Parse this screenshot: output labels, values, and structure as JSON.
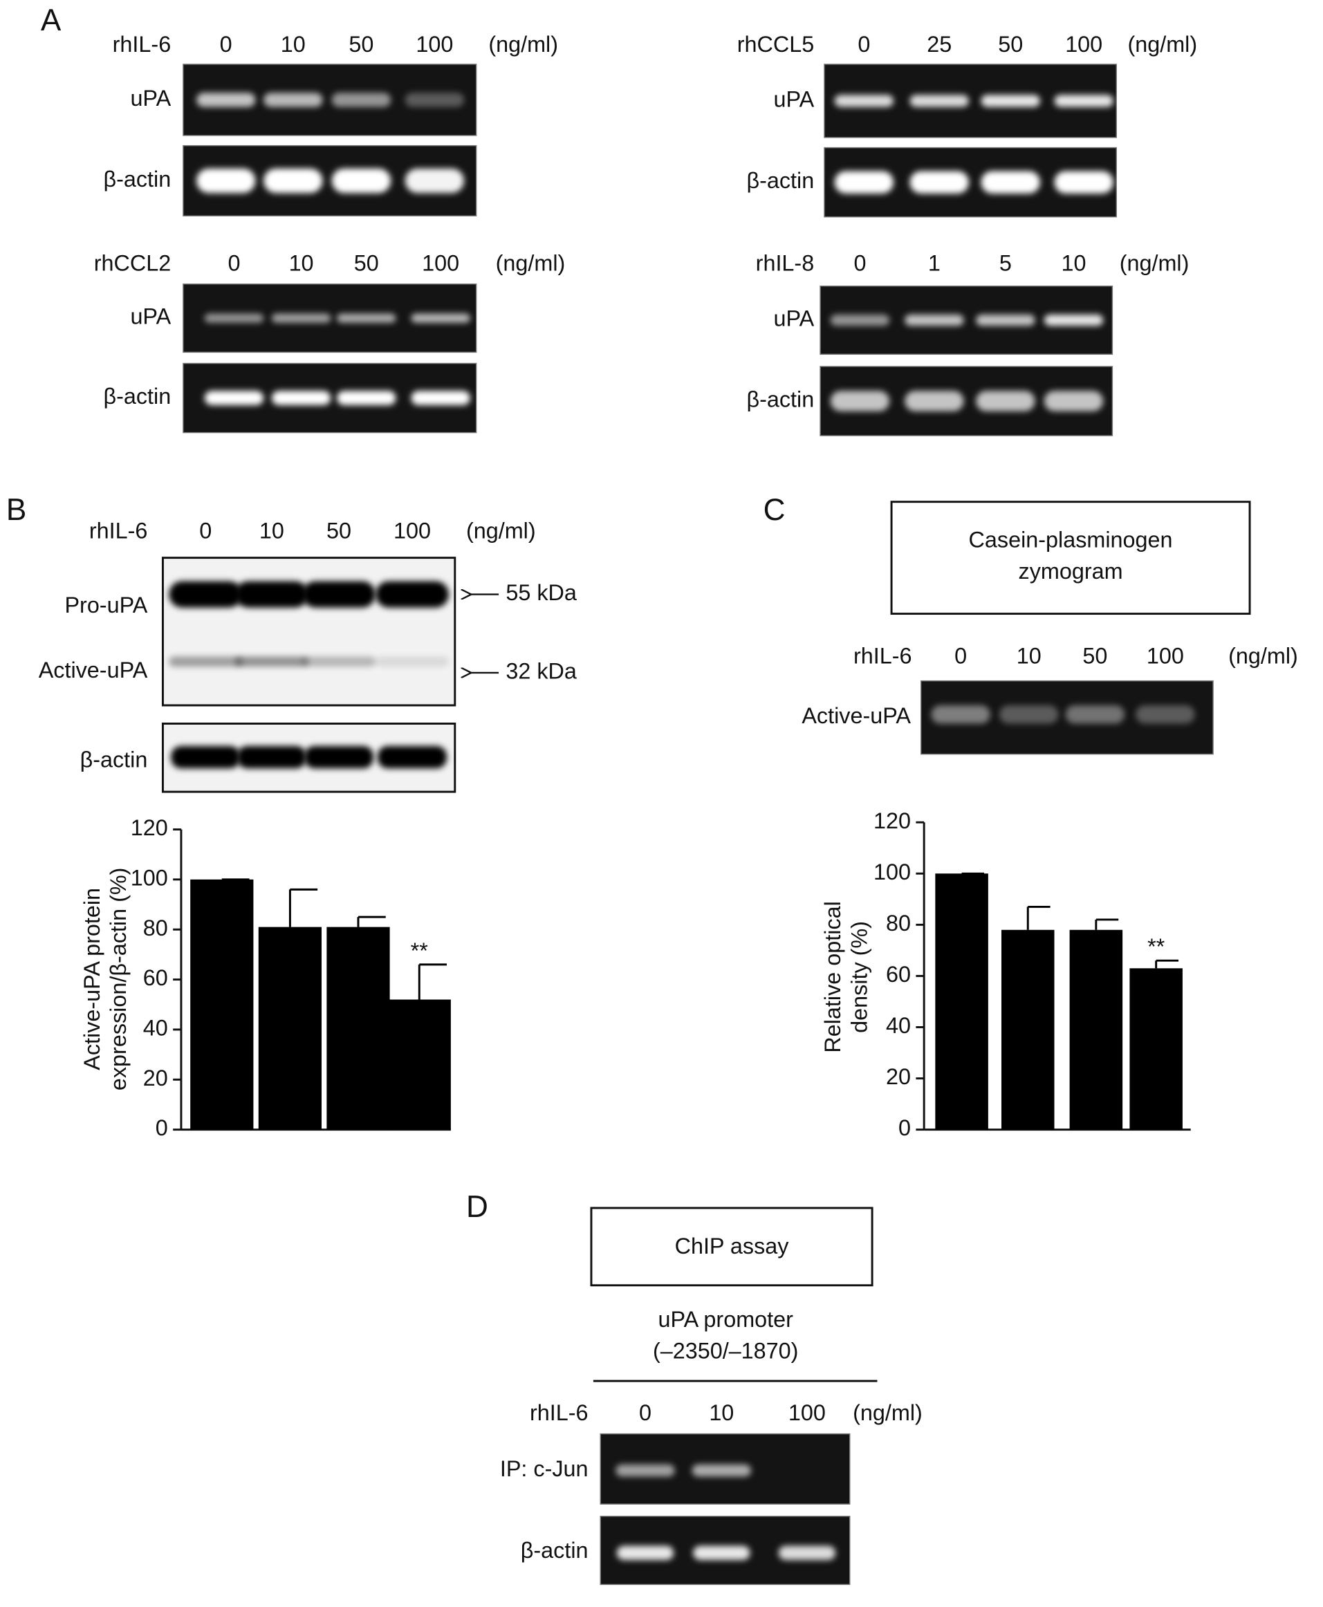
{
  "figure": {
    "A": {
      "label": "A",
      "blots": [
        {
          "treatment": "rhIL-6",
          "doses": [
            0,
            10,
            50,
            100
          ],
          "unit": "(ng/ml)",
          "rows": [
            "uPA",
            "β-actin"
          ]
        },
        {
          "treatment": "rhCCL5",
          "doses": [
            0,
            25,
            50,
            100
          ],
          "unit": "(ng/ml)",
          "rows": [
            "uPA",
            "β-actin"
          ]
        },
        {
          "treatment": "rhCCL2",
          "doses": [
            0,
            10,
            50,
            100
          ],
          "unit": "(ng/ml)",
          "rows": [
            "uPA",
            "β-actin"
          ]
        },
        {
          "treatment": "rhIL-8",
          "doses": [
            0,
            1,
            5,
            10
          ],
          "unit": "(ng/ml)",
          "rows": [
            "uPA",
            "β-actin"
          ]
        }
      ]
    },
    "B": {
      "label": "B",
      "treatment": "rhIL-6",
      "doses": [
        0,
        10,
        50,
        100
      ],
      "unit": "(ng/ml)",
      "rows": [
        "Pro-uPA",
        "Active-uPA",
        "β-actin"
      ],
      "markers": [
        "55 kDa",
        "32 kDa"
      ]
    },
    "C": {
      "label": "C",
      "box": [
        "Casein-plasminogen",
        "zymogram"
      ],
      "treatment": "rhIL-6",
      "doses": [
        0,
        10,
        50,
        100
      ],
      "unit": "(ng/ml)",
      "rows": [
        "Active-uPA"
      ]
    },
    "D": {
      "label": "D",
      "box": "ChIP assay",
      "region": [
        "uPA promoter",
        "(–2350/–1870)"
      ],
      "treatment": "rhIL-6",
      "doses": [
        0,
        10,
        100
      ],
      "unit": "(ng/ml)",
      "rows": [
        "IP: c-Jun",
        "β-actin"
      ]
    }
  },
  "chart_data": [
    {
      "type": "bar",
      "ylabel": [
        "Active-uPA protein",
        "expression/β-actin (%)"
      ],
      "categories": [
        null,
        null,
        null,
        null
      ],
      "values": [
        100,
        81,
        81,
        52
      ],
      "errors": [
        0,
        15,
        4,
        14
      ],
      "annotations": [
        null,
        null,
        null,
        "**"
      ],
      "color": "#000000",
      "ylim": [
        0,
        120
      ],
      "yticks": [
        0,
        20,
        40,
        60,
        80,
        100,
        120
      ]
    },
    {
      "type": "bar",
      "ylabel": [
        "Relative optical",
        "density (%)"
      ],
      "categories": [
        null,
        null,
        null,
        null
      ],
      "values": [
        100,
        78,
        78,
        63
      ],
      "errors": [
        0,
        9,
        4,
        3
      ],
      "annotations": [
        null,
        null,
        null,
        "**"
      ],
      "color": "#000000",
      "ylim": [
        0,
        120
      ],
      "yticks": [
        0,
        20,
        40,
        60,
        80,
        100,
        120
      ]
    }
  ]
}
